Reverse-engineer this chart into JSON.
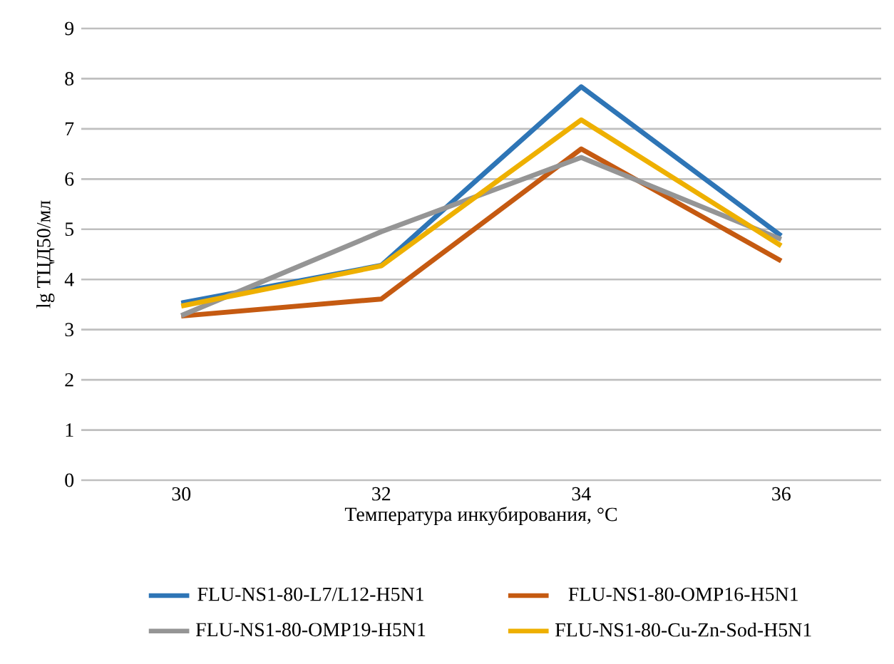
{
  "chart_data": {
    "type": "line",
    "xlabel": "Температура инкубирования, °C",
    "ylabel": "lg ТЦД50/мл",
    "categories": [
      "30",
      "32",
      "34",
      "36"
    ],
    "series": [
      {
        "name": "FLU-NS1-80-L7/L12-H5N1",
        "color": "#2e75b6",
        "values": [
          3.53,
          4.28,
          7.84,
          4.87
        ]
      },
      {
        "name": "FLU-NS1-80-OMP16-H5N1",
        "color": "#c55a11",
        "values": [
          3.27,
          3.61,
          6.6,
          4.37
        ]
      },
      {
        "name": "FLU-NS1-80-OMP19-H5N1",
        "color": "#959595",
        "values": [
          3.28,
          4.95,
          6.43,
          4.8
        ]
      },
      {
        "name": "FLU-NS1-80-Cu-Zn-Sod-H5N1",
        "color": "#eeb000",
        "values": [
          3.47,
          4.27,
          7.18,
          4.67
        ]
      }
    ],
    "ylim": [
      0,
      9
    ],
    "yticks": [
      0,
      1,
      2,
      3,
      4,
      5,
      6,
      7,
      8,
      9
    ],
    "grid": "y",
    "legend": "bottom",
    "marker": "none",
    "line_style": "solid"
  }
}
